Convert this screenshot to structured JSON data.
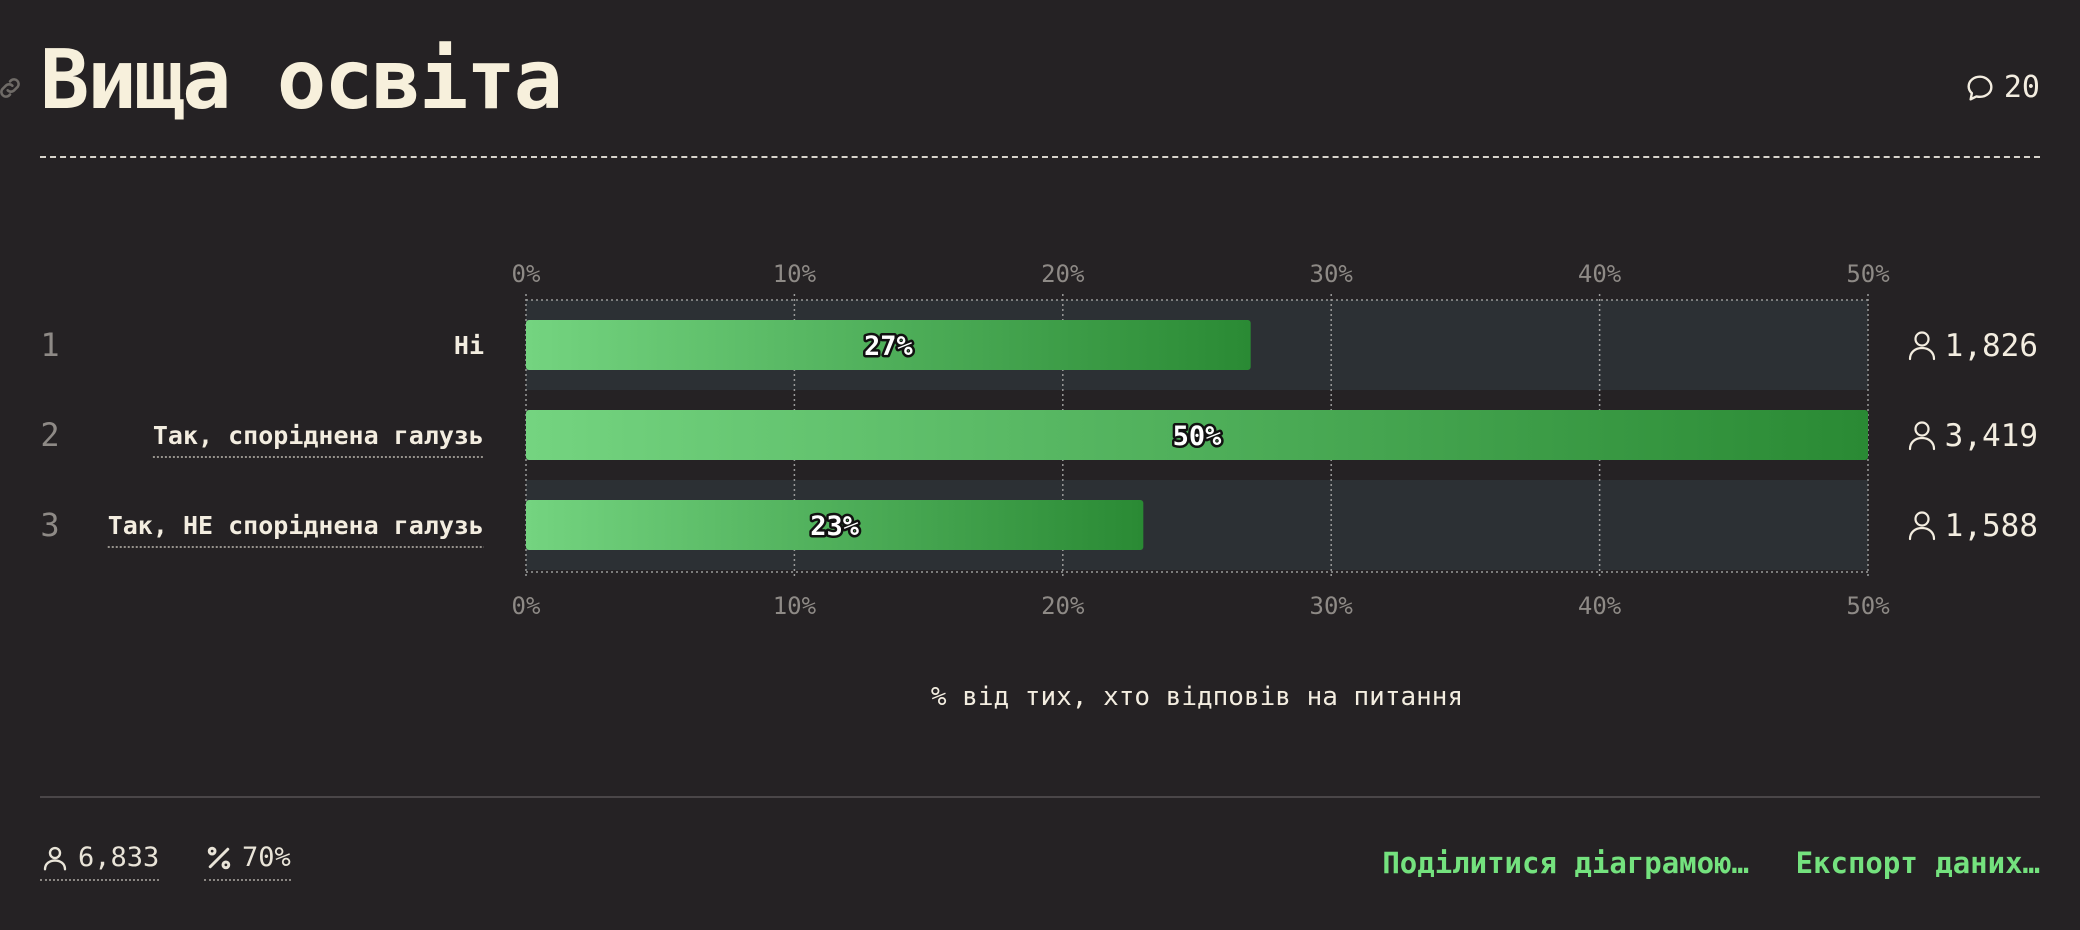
{
  "header": {
    "title": "Вища освіта",
    "comments_count": "20"
  },
  "chart_data": {
    "type": "bar",
    "orientation": "horizontal",
    "categories": [
      "Ні",
      "Так, споріднена галузь",
      "Так, НЕ споріднена галузь"
    ],
    "row_numbers": [
      "1",
      "2",
      "3"
    ],
    "values": [
      27,
      50,
      23
    ],
    "value_labels": [
      "27%",
      "50%",
      "23%"
    ],
    "respondents": [
      "1,826",
      "3,419",
      "1,588"
    ],
    "xlim": [
      0,
      50
    ],
    "xticks": [
      "0%",
      "10%",
      "20%",
      "30%",
      "40%",
      "50%"
    ],
    "xlabel": "% від тих, хто відповів на питання",
    "grid": true,
    "colors": {
      "bar_start": "#74d480",
      "bar_end": "#2a8a34",
      "track": "#2c3034",
      "grid": "#9a9a9a",
      "text": "#f3ede0",
      "muted": "#8e8a86"
    }
  },
  "footer": {
    "total_respondents": "6,833",
    "response_rate": "70%",
    "share_label": "Поділитися діаграмою…",
    "export_label": "Експорт даних…"
  }
}
